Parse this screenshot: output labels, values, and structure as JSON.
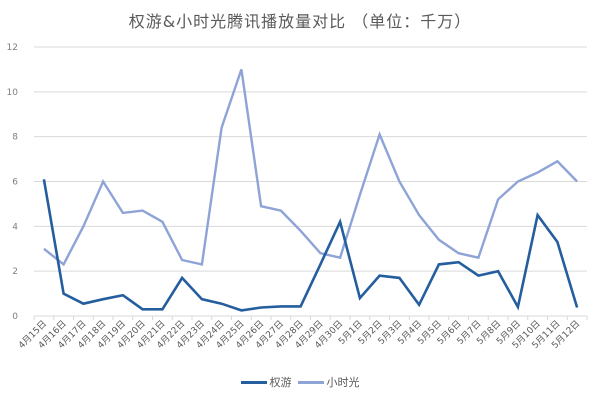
{
  "chart_data": {
    "type": "line",
    "title": "权游&小时光腾讯播放量对比 （单位：千万）",
    "xlabel": "",
    "ylabel": "",
    "ylim": [
      0,
      12
    ],
    "yticks": [
      0,
      2,
      4,
      6,
      8,
      10,
      12
    ],
    "grid": true,
    "legend_position": "bottom",
    "categories": [
      "4月15日",
      "4月16日",
      "4月17日",
      "4月18日",
      "4月19日",
      "4月20日",
      "4月21日",
      "4月22日",
      "4月23日",
      "4月24日",
      "4月25日",
      "4月26日",
      "4月27日",
      "4月28日",
      "4月29日",
      "4月30日",
      "5月1日",
      "5月2日",
      "5月3日",
      "5月4日",
      "5月5日",
      "5月6日",
      "5月7日",
      "5月8日",
      "5月9日",
      "5月10日",
      "5月11日",
      "5月12日"
    ],
    "series": [
      {
        "name": "权游",
        "color": "#255E9E",
        "values": [
          6.1,
          1.0,
          0.55,
          0.75,
          0.93,
          0.3,
          0.3,
          1.7,
          0.75,
          0.55,
          0.25,
          0.38,
          0.43,
          0.43,
          2.3,
          4.2,
          0.8,
          1.8,
          1.7,
          0.5,
          2.3,
          2.4,
          1.8,
          2.0,
          0.4,
          4.5,
          3.3,
          0.38
        ]
      },
      {
        "name": "小时光",
        "color": "#8EA3D6",
        "values": [
          3.0,
          2.3,
          4.0,
          6.0,
          4.6,
          4.7,
          4.2,
          2.5,
          2.3,
          8.4,
          11.0,
          4.9,
          4.7,
          3.8,
          2.8,
          2.6,
          5.4,
          8.1,
          6.0,
          4.5,
          3.4,
          2.8,
          2.6,
          5.2,
          6.0,
          6.4,
          6.9,
          6.0
        ]
      }
    ]
  },
  "legend": {
    "items": [
      {
        "label": "权游",
        "color": "#255E9E"
      },
      {
        "label": "小时光",
        "color": "#8EA3D6"
      }
    ]
  }
}
